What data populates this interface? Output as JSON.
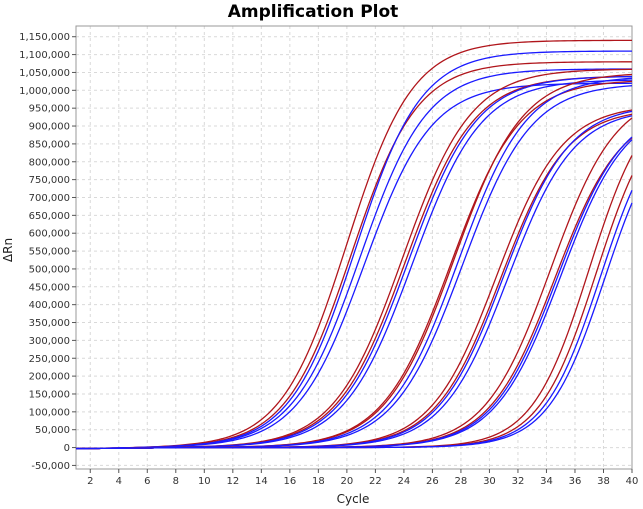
{
  "chart_data": {
    "type": "line",
    "title": "Amplification Plot",
    "xlabel": "Cycle",
    "ylabel": "ΔRn",
    "xlim": [
      1,
      40
    ],
    "ylim": [
      -60000,
      1180000
    ],
    "x_ticks": [
      2,
      4,
      6,
      8,
      10,
      12,
      14,
      16,
      18,
      20,
      22,
      24,
      26,
      28,
      30,
      32,
      34,
      36,
      38,
      40
    ],
    "y_ticks": [
      -50000,
      0,
      50000,
      100000,
      150000,
      200000,
      250000,
      300000,
      350000,
      400000,
      450000,
      500000,
      550000,
      600000,
      650000,
      700000,
      750000,
      800000,
      850000,
      900000,
      950000,
      1000000,
      1050000,
      1100000,
      1150000
    ],
    "y_tick_labels": [
      "-50,000",
      "0",
      "50,000",
      "100,000",
      "150,000",
      "200,000",
      "250,000",
      "300,000",
      "350,000",
      "400,000",
      "450,000",
      "500,000",
      "550,000",
      "600,000",
      "650,000",
      "700,000",
      "750,000",
      "800,000",
      "850,000",
      "900,000",
      "950,000",
      "1,000,000",
      "1,050,000",
      "1,100,000",
      "1,150,000"
    ],
    "grid": true,
    "colors": {
      "red": "#b0151b",
      "blue": "#1a1aff"
    },
    "model": "sigmoid: y = plateau / (1 + exp(-(cycle - midpoint) / slope))",
    "series": [
      {
        "color": "red",
        "plateau": 1140000,
        "midpoint": 20.0,
        "slope": 2.3
      },
      {
        "color": "red",
        "plateau": 1080000,
        "midpoint": 20.3,
        "slope": 2.3
      },
      {
        "color": "blue",
        "plateau": 1110000,
        "midpoint": 20.6,
        "slope": 2.3
      },
      {
        "color": "blue",
        "plateau": 1060000,
        "midpoint": 20.9,
        "slope": 2.35
      },
      {
        "color": "blue",
        "plateau": 1020000,
        "midpoint": 21.2,
        "slope": 2.35
      },
      {
        "color": "red",
        "plateau": 1060000,
        "midpoint": 23.9,
        "slope": 2.4
      },
      {
        "color": "red",
        "plateau": 1040000,
        "midpoint": 24.1,
        "slope": 2.4
      },
      {
        "color": "blue",
        "plateau": 1040000,
        "midpoint": 24.3,
        "slope": 2.4
      },
      {
        "color": "blue",
        "plateau": 1030000,
        "midpoint": 24.6,
        "slope": 2.4
      },
      {
        "color": "red",
        "plateau": 1030000,
        "midpoint": 27.3,
        "slope": 2.4
      },
      {
        "color": "red",
        "plateau": 1050000,
        "midpoint": 27.5,
        "slope": 2.4
      },
      {
        "color": "blue",
        "plateau": 1040000,
        "midpoint": 27.8,
        "slope": 2.4
      },
      {
        "color": "blue",
        "plateau": 1020000,
        "midpoint": 28.1,
        "slope": 2.4
      },
      {
        "color": "red",
        "plateau": 960000,
        "midpoint": 30.5,
        "slope": 2.3
      },
      {
        "color": "red",
        "plateau": 950000,
        "midpoint": 30.8,
        "slope": 2.3
      },
      {
        "color": "blue",
        "plateau": 960000,
        "midpoint": 31.0,
        "slope": 2.3
      },
      {
        "color": "blue",
        "plateau": 950000,
        "midpoint": 31.3,
        "slope": 2.3
      },
      {
        "color": "red",
        "plateau": 1000000,
        "midpoint": 34.3,
        "slope": 2.3
      },
      {
        "color": "red",
        "plateau": 950000,
        "midpoint": 34.6,
        "slope": 2.3
      },
      {
        "color": "blue",
        "plateau": 960000,
        "midpoint": 34.8,
        "slope": 2.3
      },
      {
        "color": "blue",
        "plateau": 960000,
        "midpoint": 35.0,
        "slope": 2.3
      },
      {
        "color": "red",
        "plateau": 1000000,
        "midpoint": 37.0,
        "slope": 2.0
      },
      {
        "color": "red",
        "plateau": 980000,
        "midpoint": 37.5,
        "slope": 2.0
      },
      {
        "color": "blue",
        "plateau": 960000,
        "midpoint": 37.8,
        "slope": 2.0
      },
      {
        "color": "blue",
        "plateau": 950000,
        "midpoint": 38.1,
        "slope": 2.0
      }
    ]
  }
}
